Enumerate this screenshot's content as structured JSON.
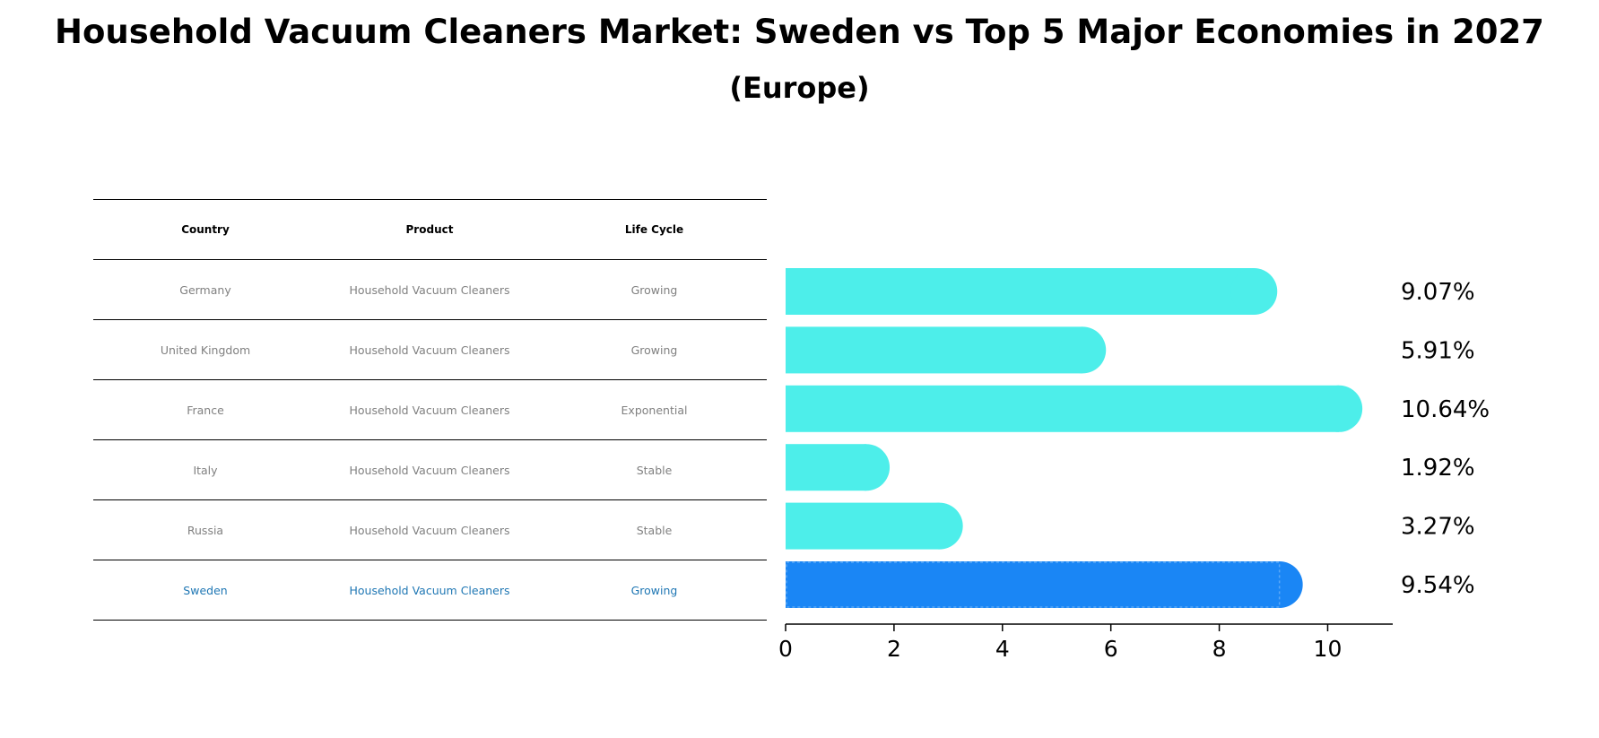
{
  "title": "Household Vacuum Cleaners Market: Sweden vs Top 5 Major Economies in 2027",
  "subtitle": "(Europe)",
  "table": {
    "headers": [
      "Country",
      "Product",
      "Life Cycle"
    ],
    "rows": [
      {
        "country": "Germany",
        "product": "Household Vacuum Cleaners",
        "life_cycle": "Growing"
      },
      {
        "country": "United Kingdom",
        "product": "Household Vacuum Cleaners",
        "life_cycle": "Growing"
      },
      {
        "country": "France",
        "product": "Household Vacuum Cleaners",
        "life_cycle": "Exponential"
      },
      {
        "country": "Italy",
        "product": "Household Vacuum Cleaners",
        "life_cycle": "Stable"
      },
      {
        "country": "Russia",
        "product": "Household Vacuum Cleaners",
        "life_cycle": "Stable"
      },
      {
        "country": "Sweden",
        "product": "Household Vacuum Cleaners",
        "life_cycle": "Growing"
      }
    ]
  },
  "chart_data": {
    "type": "bar",
    "orientation": "horizontal",
    "categories": [
      "Germany",
      "United Kingdom",
      "France",
      "Italy",
      "Russia",
      "Sweden"
    ],
    "values": [
      9.07,
      5.91,
      10.64,
      1.92,
      3.27,
      9.54
    ],
    "value_labels": [
      "9.07%",
      "5.91%",
      "10.64%",
      "1.92%",
      "3.27%",
      "9.54%"
    ],
    "highlight_index": 5,
    "xlim": [
      0,
      11.2
    ],
    "xticks": [
      0,
      2,
      4,
      6,
      8,
      10
    ],
    "colors": {
      "default": "#4deeea",
      "highlight": "#1a86f5",
      "highlight_text": "#1f77b4"
    }
  }
}
